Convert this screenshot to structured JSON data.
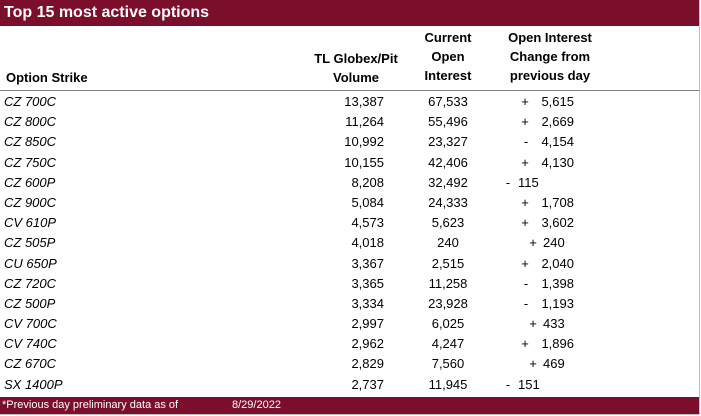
{
  "title": "Top 15 most active options",
  "headers": {
    "strike": "Option Strike",
    "volume_line1": "TL Globex/Pit",
    "volume_line2": "Volume",
    "oi_line1": "Current",
    "oi_line2": "Open",
    "oi_line3": "Interest",
    "chg_line1": "Open Interest",
    "chg_line2": "Change from",
    "chg_line3": "previous day"
  },
  "rows": [
    {
      "strike": "CZ 700C",
      "volume": "13,387",
      "oi": "67,533",
      "sign": "+",
      "change": "5,615"
    },
    {
      "strike": "CZ 800C",
      "volume": "11,264",
      "oi": "55,496",
      "sign": "+",
      "change": "2,669"
    },
    {
      "strike": "CZ 850C",
      "volume": "10,992",
      "oi": "23,327",
      "sign": "-",
      "change": "4,154"
    },
    {
      "strike": "CZ 750C",
      "volume": "10,155",
      "oi": "42,406",
      "sign": "+",
      "change": "4,130"
    },
    {
      "strike": "CZ 600P",
      "volume": "8,208",
      "oi": "32,492",
      "sign": "-",
      "change": "115"
    },
    {
      "strike": "CZ 900C",
      "volume": "5,084",
      "oi": "24,333",
      "sign": "+",
      "change": "1,708"
    },
    {
      "strike": "CV 610P",
      "volume": "4,573",
      "oi": "5,623",
      "sign": "+",
      "change": "3,602"
    },
    {
      "strike": "CZ 505P",
      "volume": "4,018",
      "oi": "240",
      "sign": "+",
      "change": "240"
    },
    {
      "strike": "CU 650P",
      "volume": "3,367",
      "oi": "2,515",
      "sign": "+",
      "change": "2,040"
    },
    {
      "strike": "CZ 720C",
      "volume": "3,365",
      "oi": "11,258",
      "sign": "-",
      "change": "1,398"
    },
    {
      "strike": "CZ 500P",
      "volume": "3,334",
      "oi": "23,928",
      "sign": "-",
      "change": "1,193"
    },
    {
      "strike": "CV 700C",
      "volume": "2,997",
      "oi": "6,025",
      "sign": "+",
      "change": "433"
    },
    {
      "strike": "CV 740C",
      "volume": "2,962",
      "oi": "4,247",
      "sign": "+",
      "change": "1,896"
    },
    {
      "strike": "CZ 670C",
      "volume": "2,829",
      "oi": "7,560",
      "sign": "+",
      "change": "469"
    },
    {
      "strike": "SX 1400P",
      "volume": "2,737",
      "oi": "11,945",
      "sign": "-",
      "change": "151"
    }
  ],
  "footer": {
    "note": "*Previous day preliminary data as of",
    "date": "8/29/2022"
  },
  "colors": {
    "accent": "#7b0f2b"
  }
}
